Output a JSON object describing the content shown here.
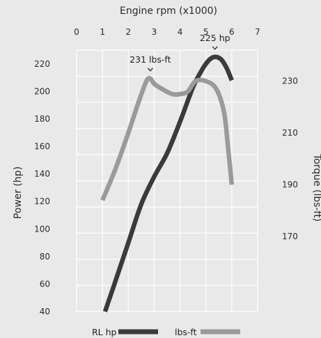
{
  "chart_data": {
    "type": "line",
    "xlabel": "Engine rpm (x1000)",
    "ylabel_left": "Power (hp)",
    "ylabel_right": "Torque (lbs-ft)",
    "xlim": [
      0,
      7
    ],
    "xticks": [
      0,
      1,
      2,
      3,
      4,
      5,
      6,
      7
    ],
    "ylim_left": [
      40,
      230
    ],
    "yticks_left": [
      40,
      60,
      80,
      100,
      120,
      140,
      160,
      180,
      200,
      220
    ],
    "ylim_right": [
      141,
      242
    ],
    "yticks_right": [
      170,
      190,
      210,
      230
    ],
    "grid": true,
    "legend_position": "bottom-center",
    "series": [
      {
        "name": "RL hp",
        "axis": "left",
        "color": "#3a3a3a",
        "x": [
          1.1,
          1.5,
          2.0,
          2.5,
          3.0,
          3.5,
          4.0,
          4.5,
          4.8,
          5.0,
          5.2,
          5.4,
          5.6,
          5.8,
          6.0
        ],
        "y": [
          40,
          62,
          90,
          118,
          138,
          155,
          178,
          203,
          214,
          220,
          224,
          225,
          223,
          217,
          208
        ]
      },
      {
        "name": "lbs-ft",
        "axis": "right",
        "color": "#9a9a9a",
        "x": [
          1.0,
          1.5,
          2.0,
          2.4,
          2.7,
          2.85,
          3.0,
          3.3,
          3.7,
          4.0,
          4.3,
          4.6,
          5.0,
          5.4,
          5.7,
          5.85,
          6.0
        ],
        "y": [
          184,
          196,
          210,
          222,
          230,
          231,
          229,
          227,
          225,
          225,
          226,
          230,
          230,
          227,
          218,
          205,
          190
        ]
      }
    ],
    "annotations": [
      {
        "text": "225 hp",
        "x": 5.35,
        "y": 225,
        "axis": "left"
      },
      {
        "text": "231 lbs-ft",
        "x": 2.85,
        "y": 231,
        "axis": "right"
      }
    ]
  }
}
